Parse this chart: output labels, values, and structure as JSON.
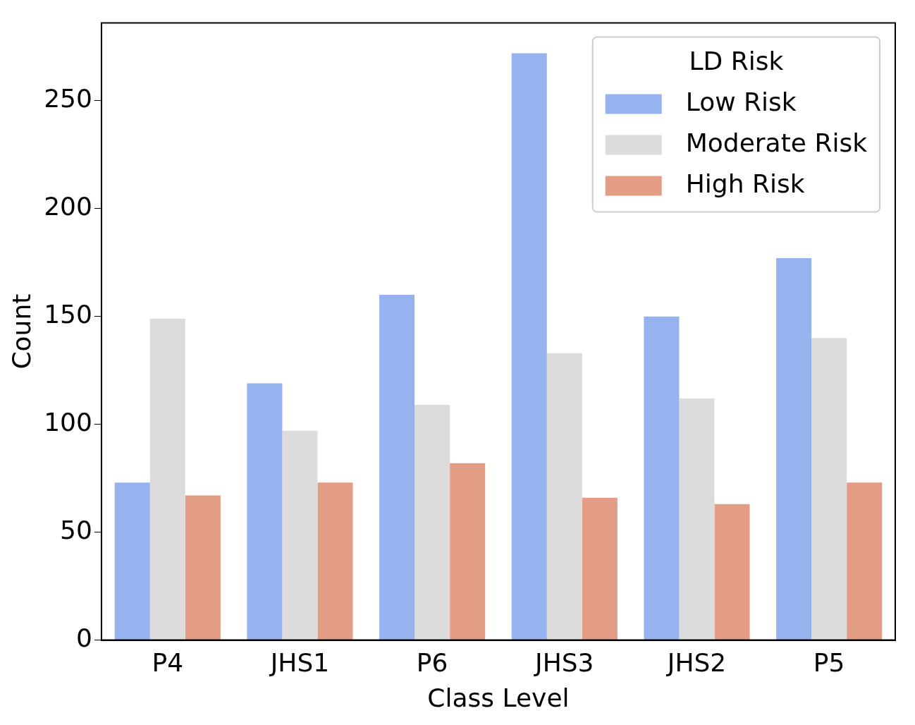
{
  "chart_data": {
    "type": "bar",
    "xlabel": "Class Level",
    "ylabel": "Count",
    "legend_title": "LD Risk",
    "categories": [
      "P4",
      "JHS1",
      "P6",
      "JHS3",
      "JHS2",
      "P5"
    ],
    "series": [
      {
        "name": "Low Risk",
        "color": "#97b3ef",
        "values": [
          73,
          119,
          160,
          272,
          150,
          177
        ]
      },
      {
        "name": "Moderate Risk",
        "color": "#dcdcdc",
        "values": [
          149,
          97,
          109,
          133,
          112,
          140
        ]
      },
      {
        "name": "High Risk",
        "color": "#e29d84",
        "values": [
          67,
          73,
          82,
          66,
          63,
          73
        ]
      }
    ],
    "ylim": [
      0,
      286
    ],
    "yticks": [
      0,
      50,
      100,
      150,
      200,
      250
    ],
    "grid": false,
    "legend": "top right"
  }
}
